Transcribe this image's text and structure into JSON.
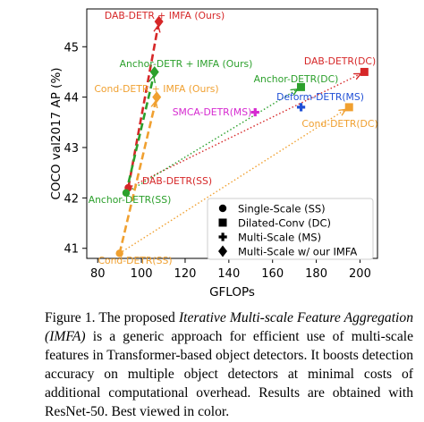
{
  "chart_data": {
    "type": "scatter",
    "xlabel": "GFLOPs",
    "ylabel": "COCO val2017 AP (%)",
    "xlim": [
      75,
      208
    ],
    "ylim": [
      40.8,
      45.75
    ],
    "xticks": [
      80,
      100,
      120,
      140,
      160,
      180,
      200
    ],
    "yticks": [
      41,
      42,
      43,
      44,
      45
    ],
    "grid": false,
    "legend_position": "bottom-right",
    "legend": [
      {
        "marker": "circle",
        "label": "Single-Scale (SS)"
      },
      {
        "marker": "square",
        "label": "Dilated-Conv (DC)"
      },
      {
        "marker": "plus",
        "label": "Multi-Scale (MS)"
      },
      {
        "marker": "diamond",
        "label": "Multi-Scale w/ our IMFA"
      }
    ],
    "points": [
      {
        "label": "DAB-DETR(SS)",
        "x": 94,
        "y": 42.2,
        "marker": "circle",
        "color": "#d62728"
      },
      {
        "label": "DAB-DETR(DC)",
        "x": 202,
        "y": 44.5,
        "marker": "square",
        "color": "#d62728"
      },
      {
        "label": "DAB-DETR + IMFA (Ours)",
        "x": 108,
        "y": 45.5,
        "marker": "diamond",
        "color": "#d62728"
      },
      {
        "label": "Anchor-DETR(SS)",
        "x": 93,
        "y": 42.1,
        "marker": "circle",
        "color": "#2ca02c"
      },
      {
        "label": "Anchor-DETR(DC)",
        "x": 173,
        "y": 44.2,
        "marker": "square",
        "color": "#2ca02c"
      },
      {
        "label": "Anchor-DETR + IMFA (Ours)",
        "x": 106,
        "y": 44.5,
        "marker": "diamond",
        "color": "#2ca02c"
      },
      {
        "label": "Cond-DETR(SS)",
        "x": 90,
        "y": 40.9,
        "marker": "circle",
        "color": "#f0a030"
      },
      {
        "label": "Cond-DETR(DC)",
        "x": 195,
        "y": 43.8,
        "marker": "square",
        "color": "#f0a030"
      },
      {
        "label": "Cond-DETR + IMFA (Ours)",
        "x": 107,
        "y": 44.0,
        "marker": "diamond",
        "color": "#f0a030"
      },
      {
        "label": "Deform-DETR(MS)",
        "x": 173,
        "y": 43.8,
        "marker": "plus",
        "color": "#1f4fd6"
      },
      {
        "label": "SMCA-DETR(MS)",
        "x": 152,
        "y": 43.7,
        "marker": "plus",
        "color": "#d62ad0"
      }
    ],
    "arrows": [
      {
        "from": "DAB-DETR(SS)",
        "to": "DAB-DETR + IMFA (Ours)",
        "style": "dashed",
        "color": "#d62728"
      },
      {
        "from": "DAB-DETR(SS)",
        "to": "DAB-DETR(DC)",
        "style": "dotted",
        "color": "#d62728"
      },
      {
        "from": "Anchor-DETR(SS)",
        "to": "Anchor-DETR + IMFA (Ours)",
        "style": "dashed",
        "color": "#2ca02c"
      },
      {
        "from": "Anchor-DETR(SS)",
        "to": "Anchor-DETR(DC)",
        "style": "dotted",
        "color": "#2ca02c"
      },
      {
        "from": "Cond-DETR(SS)",
        "to": "Cond-DETR + IMFA (Ours)",
        "style": "dashed",
        "color": "#f0a030"
      },
      {
        "from": "Cond-DETR(SS)",
        "to": "Cond-DETR(DC)",
        "style": "dotted",
        "color": "#f0a030"
      }
    ],
    "annotations": [
      {
        "text": "DAB-DETR + IMFA (Ours)",
        "color": "#d62728"
      },
      {
        "text": "DAB-DETR(DC)",
        "color": "#d62728"
      },
      {
        "text": "Anchor-DETR + IMFA (Ours)",
        "color": "#2ca02c"
      },
      {
        "text": "Anchor-DETR(DC)",
        "color": "#2ca02c"
      },
      {
        "text": "Cond-DETR + IMFA (Ours)",
        "color": "#f0a030"
      },
      {
        "text": "Deform-DETR(MS)",
        "color": "#1f4fd6"
      },
      {
        "text": "SMCA-DETR(MS)",
        "color": "#d62ad0"
      },
      {
        "text": "Cond-DETR(DC)",
        "color": "#f0a030"
      },
      {
        "text": "DAB-DETR(SS)",
        "color": "#d62728"
      },
      {
        "text": "Anchor-DETR(SS)",
        "color": "#2ca02c"
      },
      {
        "text": "Cond-DETR(SS)",
        "color": "#f0a030"
      }
    ]
  },
  "caption": {
    "lead": "Figure 1. The proposed ",
    "emphasis1": "Iterative Multi-scale Feature Aggregation (IMFA)",
    "body": " is a generic approach for efficient use of multi-scale features in Transformer-based object detectors. It boosts detection accuracy on multiple object detectors at minimal costs of additional computational overhead. Results are obtained with ResNet-50. Best viewed in color."
  }
}
